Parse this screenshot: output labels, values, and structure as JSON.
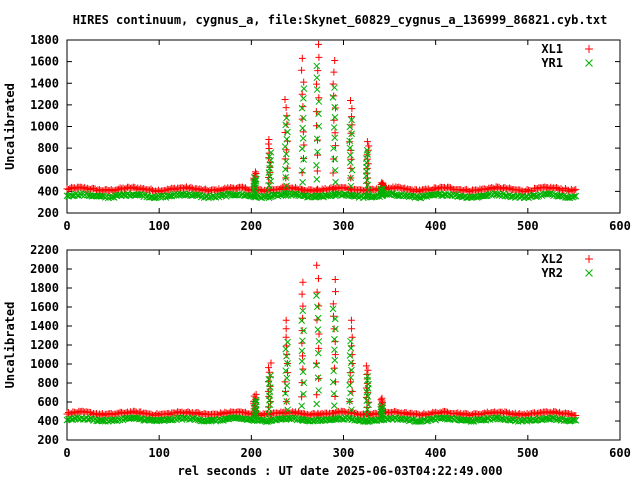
{
  "page": {
    "title": "HIRES continuum, cygnus_a, file:Skynet_60829_cygnus_a_136999_86821.cyb.txt",
    "xlabel": "rel seconds : UT date 2025-06-03T04:22:49.000"
  },
  "colors": {
    "red": "#ff0000",
    "green": "#00b000",
    "axis": "#000000"
  },
  "chart_data": [
    {
      "type": "scatter",
      "ylabel": "Uncalibrated",
      "xlim": [
        0,
        600
      ],
      "ylim": [
        200,
        1800
      ],
      "xticks": [
        0,
        100,
        200,
        300,
        400,
        500,
        600
      ],
      "yticks": [
        200,
        400,
        600,
        800,
        1000,
        1200,
        1400,
        1600,
        1800
      ],
      "legend_position": "top-right",
      "series": [
        {
          "name": "XL1",
          "marker": "+",
          "color": "#ff0000",
          "x_range": [
            0,
            553
          ],
          "baseline": 420,
          "peaks": [
            {
              "x": 204,
              "y": 580
            },
            {
              "x": 220,
              "y": 880
            },
            {
              "x": 238,
              "y": 1250
            },
            {
              "x": 256,
              "y": 1630
            },
            {
              "x": 272,
              "y": 1760
            },
            {
              "x": 290,
              "y": 1610
            },
            {
              "x": 308,
              "y": 1240
            },
            {
              "x": 326,
              "y": 860
            },
            {
              "x": 342,
              "y": 480
            }
          ]
        },
        {
          "name": "YR1",
          "marker": "x",
          "color": "#00b000",
          "x_range": [
            0,
            553
          ],
          "baseline": 360,
          "peaks": [
            {
              "x": 204,
              "y": 530
            },
            {
              "x": 220,
              "y": 760
            },
            {
              "x": 238,
              "y": 1080
            },
            {
              "x": 256,
              "y": 1350
            },
            {
              "x": 272,
              "y": 1560
            },
            {
              "x": 290,
              "y": 1360
            },
            {
              "x": 308,
              "y": 1060
            },
            {
              "x": 326,
              "y": 780
            },
            {
              "x": 342,
              "y": 430
            }
          ]
        }
      ]
    },
    {
      "type": "scatter",
      "ylabel": "Uncalibrated",
      "xlim": [
        0,
        600
      ],
      "ylim": [
        200,
        2200
      ],
      "xticks": [
        0,
        100,
        200,
        300,
        400,
        500,
        600
      ],
      "yticks": [
        200,
        400,
        600,
        800,
        1000,
        1200,
        1400,
        1600,
        1800,
        2000,
        2200
      ],
      "legend_position": "top-right",
      "series": [
        {
          "name": "XL2",
          "marker": "+",
          "color": "#ff0000",
          "x_range": [
            0,
            553
          ],
          "baseline": 480,
          "peaks": [
            {
              "x": 204,
              "y": 680
            },
            {
              "x": 220,
              "y": 1010
            },
            {
              "x": 238,
              "y": 1460
            },
            {
              "x": 256,
              "y": 1860
            },
            {
              "x": 272,
              "y": 2040
            },
            {
              "x": 290,
              "y": 1890
            },
            {
              "x": 308,
              "y": 1460
            },
            {
              "x": 326,
              "y": 980
            },
            {
              "x": 342,
              "y": 640
            }
          ]
        },
        {
          "name": "YR2",
          "marker": "x",
          "color": "#00b000",
          "x_range": [
            0,
            553
          ],
          "baseline": 415,
          "peaks": [
            {
              "x": 204,
              "y": 620
            },
            {
              "x": 220,
              "y": 880
            },
            {
              "x": 238,
              "y": 1230
            },
            {
              "x": 256,
              "y": 1560
            },
            {
              "x": 272,
              "y": 1720
            },
            {
              "x": 290,
              "y": 1580
            },
            {
              "x": 308,
              "y": 1240
            },
            {
              "x": 326,
              "y": 870
            },
            {
              "x": 342,
              "y": 560
            }
          ]
        }
      ]
    }
  ]
}
